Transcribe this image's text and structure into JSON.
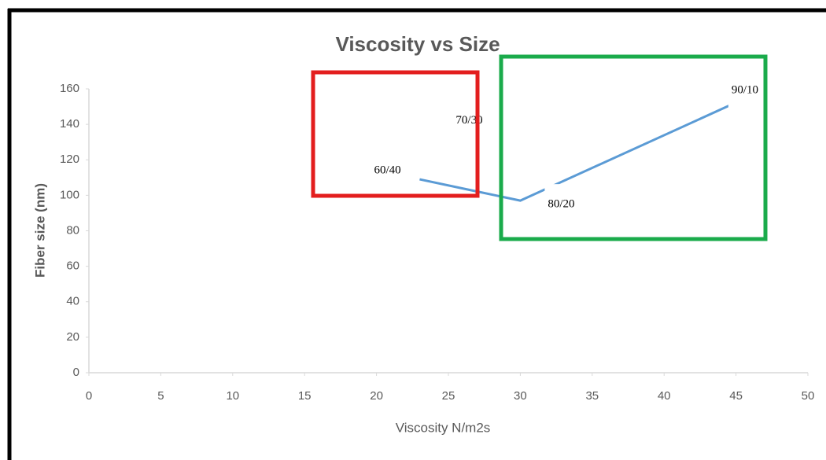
{
  "chart_data": {
    "type": "line",
    "title": "Viscosity vs Size",
    "x_label": "Viscosity N/m2s",
    "y_label": "Fiber size (nm)",
    "x": [
      23,
      26.5,
      30,
      46
    ],
    "values": [
      109,
      103,
      97,
      156
    ],
    "labels": [
      "60/40",
      "70/30",
      "80/20",
      "90/10"
    ],
    "color": "#5b9bd5",
    "xlim": [
      0,
      50
    ],
    "xticks": [
      0,
      5,
      10,
      15,
      20,
      25,
      30,
      35,
      40,
      45,
      50
    ],
    "ylim": [
      0,
      160
    ],
    "yticks": [
      0,
      20,
      40,
      60,
      80,
      100,
      120,
      140,
      160
    ],
    "grid": false
  }
}
